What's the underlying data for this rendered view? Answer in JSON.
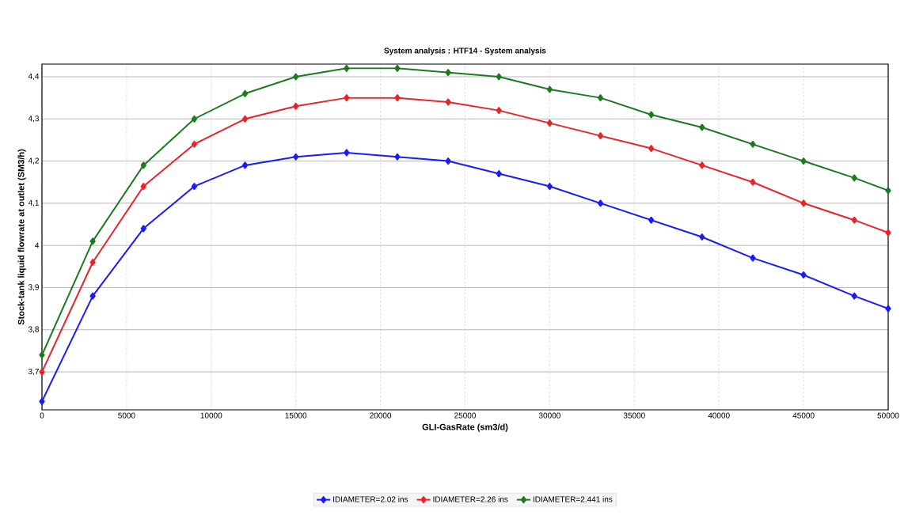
{
  "chart_data": {
    "type": "line",
    "title": "System analysis : HTF14 - System analysis",
    "xlabel": "GLI-GasRate (sm3/d)",
    "ylabel": "Stock-tank liquid flowrate at outlet (SM3/h)",
    "x": [
      0,
      3000,
      6000,
      9000,
      12000,
      15000,
      18000,
      21000,
      24000,
      27000,
      30000,
      33000,
      36000,
      39000,
      42000,
      45000,
      48000,
      50000
    ],
    "series": [
      {
        "name": "IDIAMETER=2.02 ins",
        "color": "#1a1aff",
        "values": [
          3.63,
          3.88,
          4.04,
          4.14,
          4.19,
          4.21,
          4.22,
          4.21,
          4.2,
          4.17,
          4.14,
          4.1,
          4.06,
          4.02,
          3.97,
          3.93,
          3.88,
          3.85
        ]
      },
      {
        "name": "IDIAMETER=2.26 ins",
        "color": "#e8242a",
        "values": [
          3.7,
          3.96,
          4.14,
          4.24,
          4.3,
          4.33,
          4.35,
          4.35,
          4.34,
          4.32,
          4.29,
          4.26,
          4.23,
          4.19,
          4.15,
          4.1,
          4.06,
          4.03
        ]
      },
      {
        "name": "IDIAMETER=2.441 ins",
        "color": "#1e7a1e",
        "values": [
          3.74,
          4.01,
          4.19,
          4.3,
          4.36,
          4.4,
          4.42,
          4.42,
          4.41,
          4.4,
          4.37,
          4.35,
          4.31,
          4.28,
          4.24,
          4.2,
          4.16,
          4.13
        ]
      }
    ],
    "xlim": [
      0,
      50000
    ],
    "ylim": [
      3.61,
      4.43
    ],
    "xticks": [
      0,
      5000,
      10000,
      15000,
      20000,
      25000,
      30000,
      35000,
      40000,
      45000,
      50000
    ],
    "yticks": [
      {
        "value": 3.7,
        "label": "3,7"
      },
      {
        "value": 3.8,
        "label": "3,8"
      },
      {
        "value": 3.9,
        "label": "3,9"
      },
      4,
      {
        "value": 4.1,
        "label": "4,1"
      },
      {
        "value": 4.2,
        "label": "4,2"
      },
      {
        "value": 4.3,
        "label": "4,3"
      },
      {
        "value": 4.4,
        "label": "4,4"
      }
    ],
    "grid": true,
    "legend": "bottom",
    "marker": "diamond",
    "line_style": "solid"
  }
}
